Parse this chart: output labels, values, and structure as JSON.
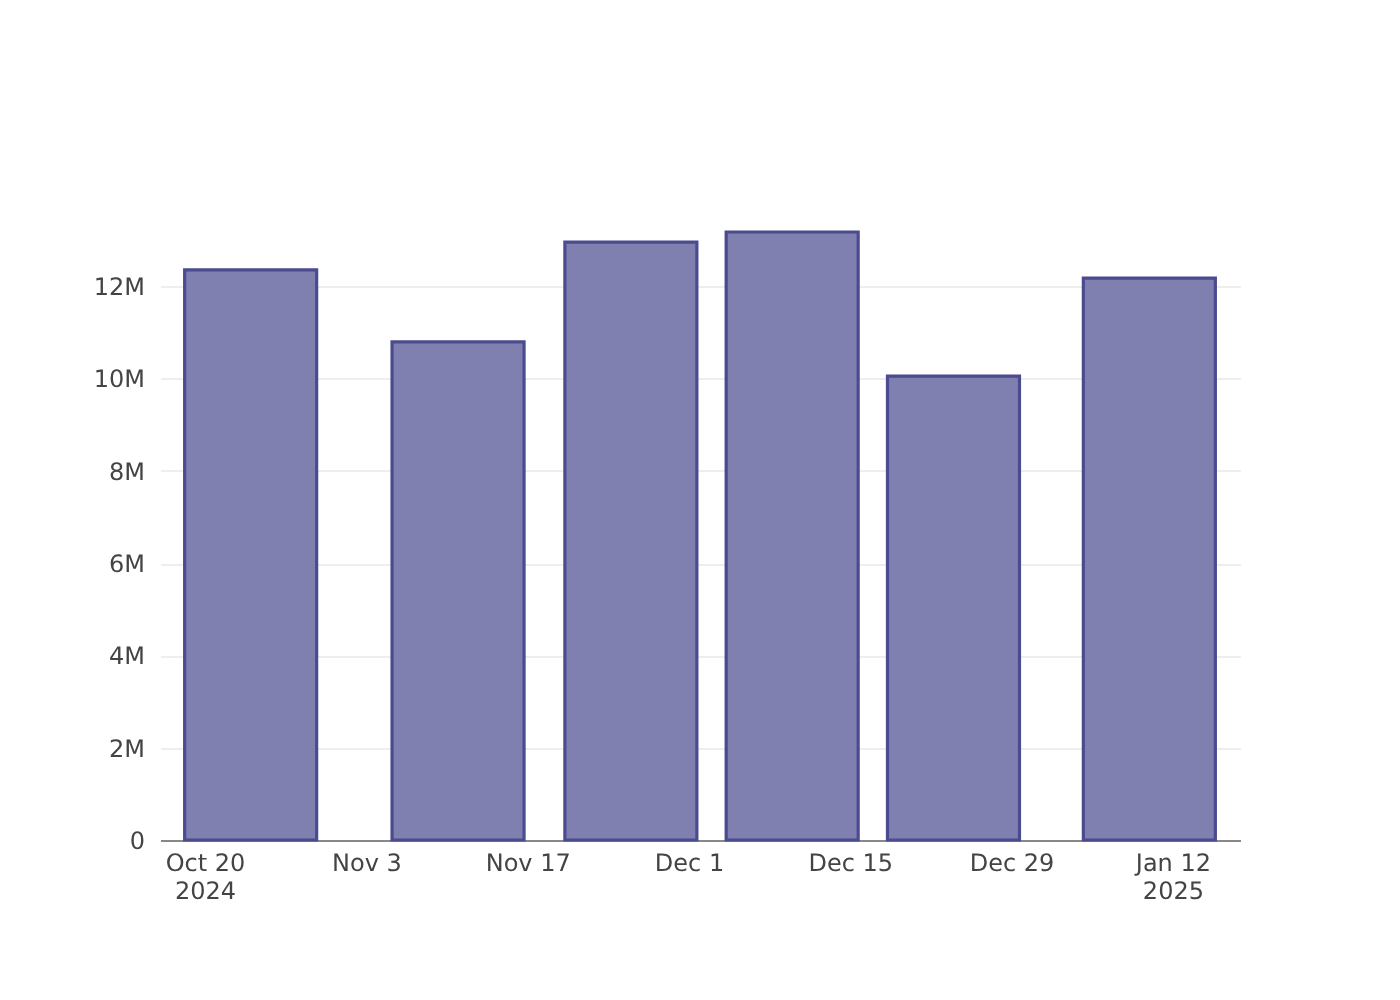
{
  "chart_data": {
    "type": "bar",
    "x": [
      "2024-10-24",
      "2024-11-11",
      "2024-11-26",
      "2024-12-10",
      "2024-12-24",
      "2025-01-10"
    ],
    "values": [
      12350000,
      10790000,
      12950000,
      13170000,
      10050000,
      12170000
    ],
    "color": "#7f7fb0",
    "xlim": [
      "2024-10-17",
      "2025-01-17"
    ],
    "xticks": [
      {
        "value": "2024-10-20",
        "label": "Oct 20\n2024"
      },
      {
        "value": "2024-11-03",
        "label": "Nov 3"
      },
      {
        "value": "2024-11-17",
        "label": "Nov 17"
      },
      {
        "value": "2024-12-01",
        "label": "Dec 1"
      },
      {
        "value": "2024-12-15",
        "label": "Dec 15"
      },
      {
        "value": "2024-12-29",
        "label": "Dec 29"
      },
      {
        "value": "2025-01-12",
        "label": "Jan 12\n2025"
      }
    ],
    "yticks": [
      {
        "value": 0,
        "label": "0"
      },
      {
        "value": 2000000,
        "label": "2M"
      },
      {
        "value": 4000000,
        "label": "4M"
      },
      {
        "value": 6000000,
        "label": "6M"
      },
      {
        "value": 8000000,
        "label": "8M"
      },
      {
        "value": 10000000,
        "label": "10M"
      },
      {
        "value": 12000000,
        "label": "12M"
      }
    ],
    "ylim": [
      0,
      13170000
    ],
    "grid": "y"
  }
}
